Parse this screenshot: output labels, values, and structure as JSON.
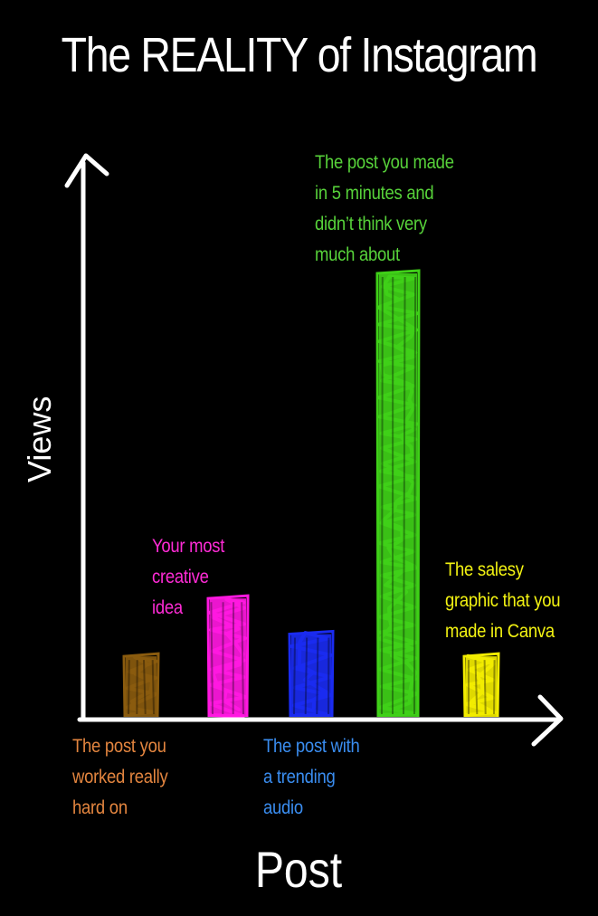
{
  "chart_data": {
    "type": "bar",
    "title": "The REALITY of Instagram",
    "xlabel": "Post",
    "ylabel": "Views",
    "ylim": [
      0,
      100
    ],
    "grid": false,
    "legend": "none",
    "categories": [
      "The post you\nworked really\nhard on",
      "Your most\ncreative\nidea",
      "The post with\na trending\naudio",
      "The post you made\nin 5 minutes and\ndidn’t think very\nmuch about",
      "The salesy\ngraphic that you\nmade in Canva"
    ],
    "values": [
      14,
      27,
      19,
      100,
      14
    ],
    "colors": [
      "#8a5b0e",
      "#ff18e0",
      "#1a2bf0",
      "#3fd018",
      "#f2ec00"
    ],
    "label_colors": [
      "#e3853f",
      "#ff2bd6",
      "#3a8df0",
      "#57d23a",
      "#f3f312"
    ],
    "background": "#000000",
    "axis_color": "#ffffff"
  }
}
